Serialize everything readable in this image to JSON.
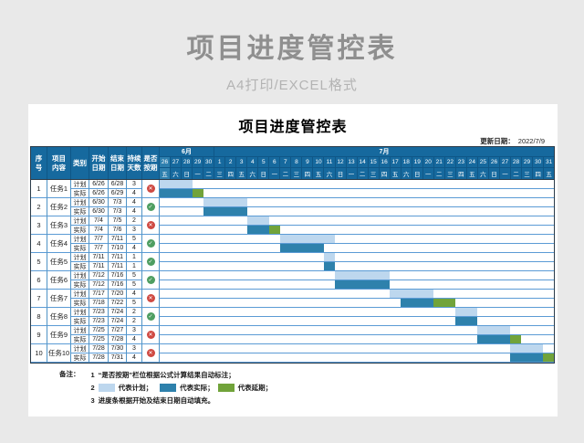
{
  "page": {
    "title": "项目进度管控表",
    "subtitle": "A4打印/EXCEL格式"
  },
  "sheet": {
    "title": "项目进度管控表",
    "update_label": "更新日期：",
    "update_date": "2022/7/9",
    "row_type_labels": {
      "plan": "计划",
      "actual": "实际"
    },
    "notes_label": "备注：",
    "notes": {
      "n1": {
        "num": "1",
        "text": "“是否按期”栏位根据公式计算结果自动标注；"
      },
      "n2": {
        "num": "2",
        "legend": [
          {
            "key": "plan",
            "text": "代表计划；"
          },
          {
            "key": "actual",
            "text": "代表实际；"
          },
          {
            "key": "delay",
            "text": "代表延期；"
          }
        ]
      },
      "n3": {
        "num": "3",
        "text": "进度条根据开始及结束日期自动填充。"
      }
    },
    "colors": {
      "header_blue": "#16699e",
      "plan_bar": "#bdd7ee",
      "actual_bar": "#2e81ac",
      "delay_bar": "#71a33a",
      "grid_line": "#5b9bd5",
      "on_time_icon": "#4e9e61",
      "late_icon": "#cf4a42"
    }
  },
  "chart_data": {
    "type": "table",
    "title": "项目进度管控表",
    "column_headers": [
      "序\n号",
      "项目\n内容",
      "类别",
      "开始\n日期",
      "结束\n日期",
      "持续\n天数",
      "是否\n按期"
    ],
    "months": [
      {
        "label": "6月",
        "span": 5
      },
      {
        "label": "7月",
        "span": 31
      }
    ],
    "dates": [
      "26",
      "27",
      "28",
      "29",
      "30",
      "1",
      "2",
      "3",
      "4",
      "5",
      "6",
      "7",
      "8",
      "9",
      "10",
      "11",
      "12",
      "13",
      "14",
      "15",
      "16",
      "17",
      "18",
      "19",
      "20",
      "21",
      "22",
      "23",
      "24",
      "25",
      "26",
      "27",
      "28",
      "29",
      "30",
      "31"
    ],
    "weekdays": [
      "五",
      "六",
      "日",
      "一",
      "二",
      "三",
      "四",
      "五",
      "六",
      "日",
      "一",
      "二",
      "三",
      "四",
      "五",
      "六",
      "日",
      "一",
      "二",
      "三",
      "四",
      "五",
      "六",
      "日",
      "一",
      "二",
      "三",
      "四",
      "五",
      "六",
      "日",
      "一",
      "二",
      "三",
      "四",
      "五"
    ],
    "timeline_days_total": 36,
    "tasks": [
      {
        "no": "1",
        "name": "任务1",
        "on_time": false,
        "plan": {
          "start": "6/26",
          "end": "6/28",
          "days": "3",
          "bar_start": 0,
          "bar_span": 3
        },
        "actual": {
          "start": "6/26",
          "end": "6/29",
          "days": "4",
          "bar_start": 0,
          "bar_span": 3,
          "delay_start": 3,
          "delay_span": 1
        }
      },
      {
        "no": "2",
        "name": "任务2",
        "on_time": true,
        "plan": {
          "start": "6/30",
          "end": "7/3",
          "days": "4",
          "bar_start": 4,
          "bar_span": 4
        },
        "actual": {
          "start": "6/30",
          "end": "7/3",
          "days": "4",
          "bar_start": 4,
          "bar_span": 4
        }
      },
      {
        "no": "3",
        "name": "任务3",
        "on_time": false,
        "plan": {
          "start": "7/4",
          "end": "7/5",
          "days": "2",
          "bar_start": 8,
          "bar_span": 2
        },
        "actual": {
          "start": "7/4",
          "end": "7/6",
          "days": "3",
          "bar_start": 8,
          "bar_span": 2,
          "delay_start": 10,
          "delay_span": 1
        }
      },
      {
        "no": "4",
        "name": "任务4",
        "on_time": true,
        "plan": {
          "start": "7/7",
          "end": "7/11",
          "days": "5",
          "bar_start": 11,
          "bar_span": 5
        },
        "actual": {
          "start": "7/7",
          "end": "7/10",
          "days": "4",
          "bar_start": 11,
          "bar_span": 4
        }
      },
      {
        "no": "5",
        "name": "任务5",
        "on_time": true,
        "plan": {
          "start": "7/11",
          "end": "7/11",
          "days": "1",
          "bar_start": 15,
          "bar_span": 1
        },
        "actual": {
          "start": "7/11",
          "end": "7/11",
          "days": "1",
          "bar_start": 15,
          "bar_span": 1
        }
      },
      {
        "no": "6",
        "name": "任务6",
        "on_time": true,
        "plan": {
          "start": "7/12",
          "end": "7/16",
          "days": "5",
          "bar_start": 16,
          "bar_span": 5
        },
        "actual": {
          "start": "7/12",
          "end": "7/16",
          "days": "5",
          "bar_start": 16,
          "bar_span": 5
        }
      },
      {
        "no": "7",
        "name": "任务7",
        "on_time": false,
        "plan": {
          "start": "7/17",
          "end": "7/20",
          "days": "4",
          "bar_start": 21,
          "bar_span": 4
        },
        "actual": {
          "start": "7/18",
          "end": "7/22",
          "days": "5",
          "bar_start": 22,
          "bar_span": 3,
          "delay_start": 25,
          "delay_span": 2
        }
      },
      {
        "no": "8",
        "name": "任务8",
        "on_time": true,
        "plan": {
          "start": "7/23",
          "end": "7/24",
          "days": "2",
          "bar_start": 27,
          "bar_span": 2
        },
        "actual": {
          "start": "7/23",
          "end": "7/24",
          "days": "2",
          "bar_start": 27,
          "bar_span": 2
        }
      },
      {
        "no": "9",
        "name": "任务9",
        "on_time": false,
        "plan": {
          "start": "7/25",
          "end": "7/27",
          "days": "3",
          "bar_start": 29,
          "bar_span": 3
        },
        "actual": {
          "start": "7/25",
          "end": "7/28",
          "days": "4",
          "bar_start": 29,
          "bar_span": 3,
          "delay_start": 32,
          "delay_span": 1
        }
      },
      {
        "no": "10",
        "name": "任务10",
        "on_time": false,
        "plan": {
          "start": "7/28",
          "end": "7/30",
          "days": "3",
          "bar_start": 32,
          "bar_span": 3
        },
        "actual": {
          "start": "7/28",
          "end": "7/31",
          "days": "4",
          "bar_start": 32,
          "bar_span": 3,
          "delay_start": 35,
          "delay_span": 1
        }
      }
    ],
    "legend": [
      "代表计划",
      "代表实际",
      "代表延期"
    ]
  }
}
